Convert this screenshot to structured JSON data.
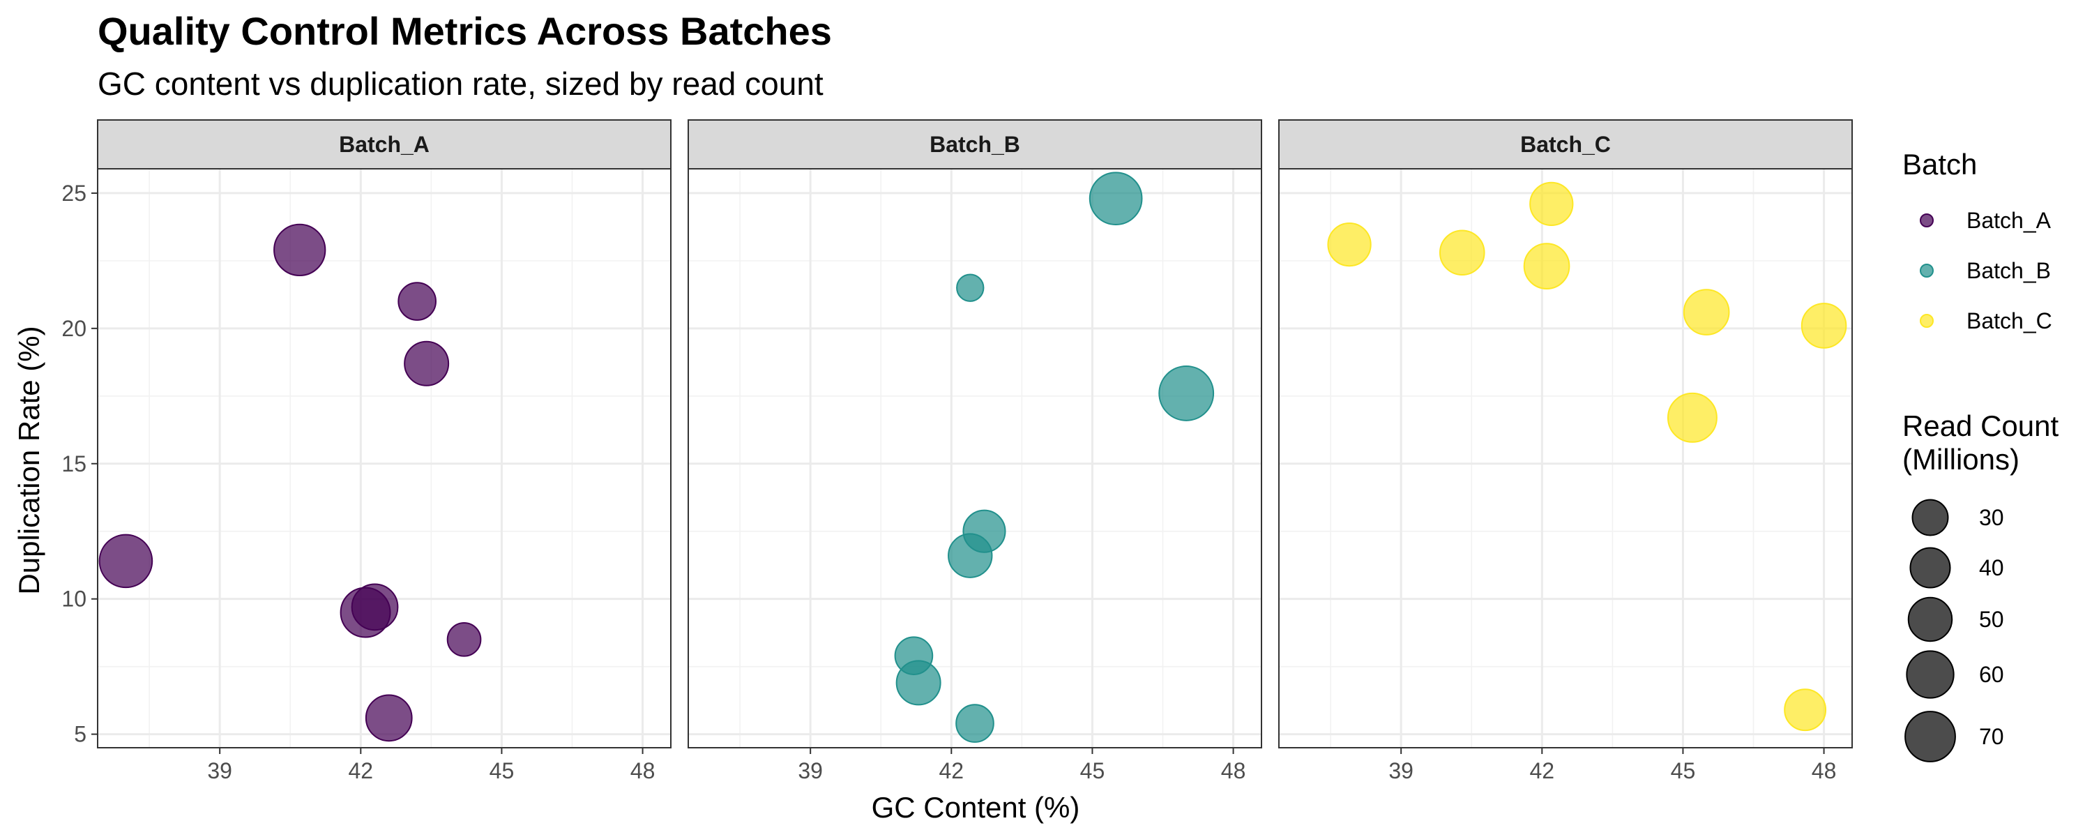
{
  "chart_data": {
    "type": "scatter",
    "title": "Quality Control Metrics Across Batches",
    "subtitle": "GC content vs duplication rate, sized by read count",
    "xlabel": "GC Content (%)",
    "ylabel": "Duplication Rate (%)",
    "xlim": [
      36.4,
      48.6
    ],
    "ylim": [
      4.5,
      25.9
    ],
    "x_ticks": [
      39,
      42,
      45,
      48
    ],
    "y_ticks": [
      5,
      10,
      15,
      20,
      25
    ],
    "grid": true,
    "facets": [
      {
        "name": "Batch_A",
        "color": "#440154",
        "points": [
          {
            "x": 37.0,
            "y": 11.4,
            "size": 70
          },
          {
            "x": 40.7,
            "y": 22.9,
            "size": 65
          },
          {
            "x": 43.2,
            "y": 21.0,
            "size": 30
          },
          {
            "x": 43.4,
            "y": 18.7,
            "size": 45
          },
          {
            "x": 42.1,
            "y": 9.5,
            "size": 60
          },
          {
            "x": 42.3,
            "y": 9.7,
            "size": 50
          },
          {
            "x": 44.2,
            "y": 8.5,
            "size": 22
          },
          {
            "x": 42.6,
            "y": 5.6,
            "size": 50
          }
        ]
      },
      {
        "name": "Batch_B",
        "color": "#21908C",
        "points": [
          {
            "x": 45.5,
            "y": 24.8,
            "size": 68
          },
          {
            "x": 42.4,
            "y": 21.5,
            "size": 12
          },
          {
            "x": 47.0,
            "y": 17.6,
            "size": 75
          },
          {
            "x": 42.7,
            "y": 12.5,
            "size": 40
          },
          {
            "x": 42.4,
            "y": 11.6,
            "size": 44
          },
          {
            "x": 41.2,
            "y": 7.9,
            "size": 30
          },
          {
            "x": 41.3,
            "y": 6.9,
            "size": 45
          },
          {
            "x": 42.5,
            "y": 5.4,
            "size": 30
          }
        ]
      },
      {
        "name": "Batch_C",
        "color": "#FDE725",
        "points": [
          {
            "x": 42.2,
            "y": 24.6,
            "size": 42
          },
          {
            "x": 37.9,
            "y": 23.1,
            "size": 42
          },
          {
            "x": 40.3,
            "y": 22.8,
            "size": 46
          },
          {
            "x": 42.1,
            "y": 22.3,
            "size": 48
          },
          {
            "x": 45.5,
            "y": 20.6,
            "size": 48
          },
          {
            "x": 48.0,
            "y": 20.1,
            "size": 46
          },
          {
            "x": 45.2,
            "y": 16.7,
            "size": 58
          },
          {
            "x": 47.6,
            "y": 5.9,
            "size": 38
          }
        ]
      }
    ],
    "legend": {
      "placement": "right",
      "color_title": "Batch",
      "color_items": [
        {
          "label": "Batch_A",
          "color": "#440154"
        },
        {
          "label": "Batch_B",
          "color": "#21908C"
        },
        {
          "label": "Batch_C",
          "color": "#FDE725"
        }
      ],
      "size_title_lines": [
        "Read Count",
        "(Millions)"
      ],
      "size_items": [
        {
          "label": "30",
          "value": 30
        },
        {
          "label": "40",
          "value": 40
        },
        {
          "label": "50",
          "value": 50
        },
        {
          "label": "60",
          "value": 60
        },
        {
          "label": "70",
          "value": 70
        }
      ]
    }
  }
}
